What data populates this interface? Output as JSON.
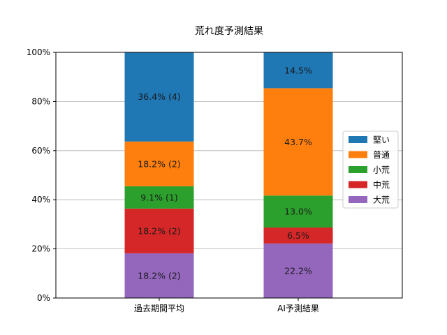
{
  "chart_data": {
    "type": "bar",
    "stacked": true,
    "title": "荒れ度予測結果",
    "xlabel": "",
    "ylabel": "",
    "ylim": [
      0,
      100
    ],
    "y_tick_labels": [
      "0%",
      "20%",
      "40%",
      "60%",
      "80%",
      "100%"
    ],
    "y_ticks": [
      0,
      20,
      40,
      60,
      80,
      100
    ],
    "grid": "horizontal",
    "legend_position": "center-right",
    "categories": [
      "過去期間平均",
      "AI予測結果"
    ],
    "series": [
      {
        "name": "大荒",
        "color": "#9467bd",
        "values": [
          18.2,
          22.2
        ],
        "labels": [
          "18.2% (2)",
          "22.2%"
        ]
      },
      {
        "name": "中荒",
        "color": "#d62728",
        "values": [
          18.2,
          6.5
        ],
        "labels": [
          "18.2% (2)",
          "6.5%"
        ]
      },
      {
        "name": "小荒",
        "color": "#2ca02c",
        "values": [
          9.1,
          13.0
        ],
        "labels": [
          "9.1% (1)",
          "13.0%"
        ]
      },
      {
        "name": "普通",
        "color": "#ff7f0e",
        "values": [
          18.2,
          43.7
        ],
        "labels": [
          "18.2% (2)",
          "43.7%"
        ]
      },
      {
        "name": "堅い",
        "color": "#1f77b4",
        "values": [
          36.4,
          14.5
        ],
        "labels": [
          "36.4% (4)",
          "14.5%"
        ]
      }
    ],
    "legend_order": [
      "堅い",
      "普通",
      "小荒",
      "中荒",
      "大荒"
    ]
  }
}
